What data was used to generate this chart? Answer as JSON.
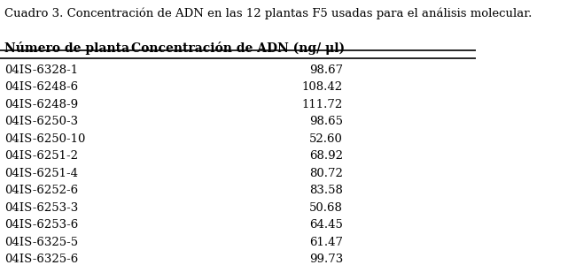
{
  "title": "Cuadro 3. Concentración de ADN en las 12 plantas F5 usadas para el análisis molecular.",
  "col1_header": "Número de planta",
  "col2_header": "Concentración de ADN (ng/ μl)",
  "rows": [
    [
      "04IS-6328-1",
      "98.67"
    ],
    [
      "04IS-6248-6",
      "108.42"
    ],
    [
      "04IS-6248-9",
      "111.72"
    ],
    [
      "04IS-6250-3",
      "98.65"
    ],
    [
      "04IS-6250-10",
      "52.60"
    ],
    [
      "04IS-6251-2",
      "68.92"
    ],
    [
      "04IS-6251-4",
      "80.72"
    ],
    [
      "04IS-6252-6",
      "83.58"
    ],
    [
      "04IS-6253-3",
      "50.68"
    ],
    [
      "04IS-6253-6",
      "64.45"
    ],
    [
      "04IS-6325-5",
      "61.47"
    ],
    [
      "04IS-6325-6",
      "99.73"
    ]
  ],
  "bg_color": "#ffffff",
  "text_color": "#000000",
  "title_fontsize": 9.5,
  "header_fontsize": 10,
  "data_fontsize": 9.5
}
